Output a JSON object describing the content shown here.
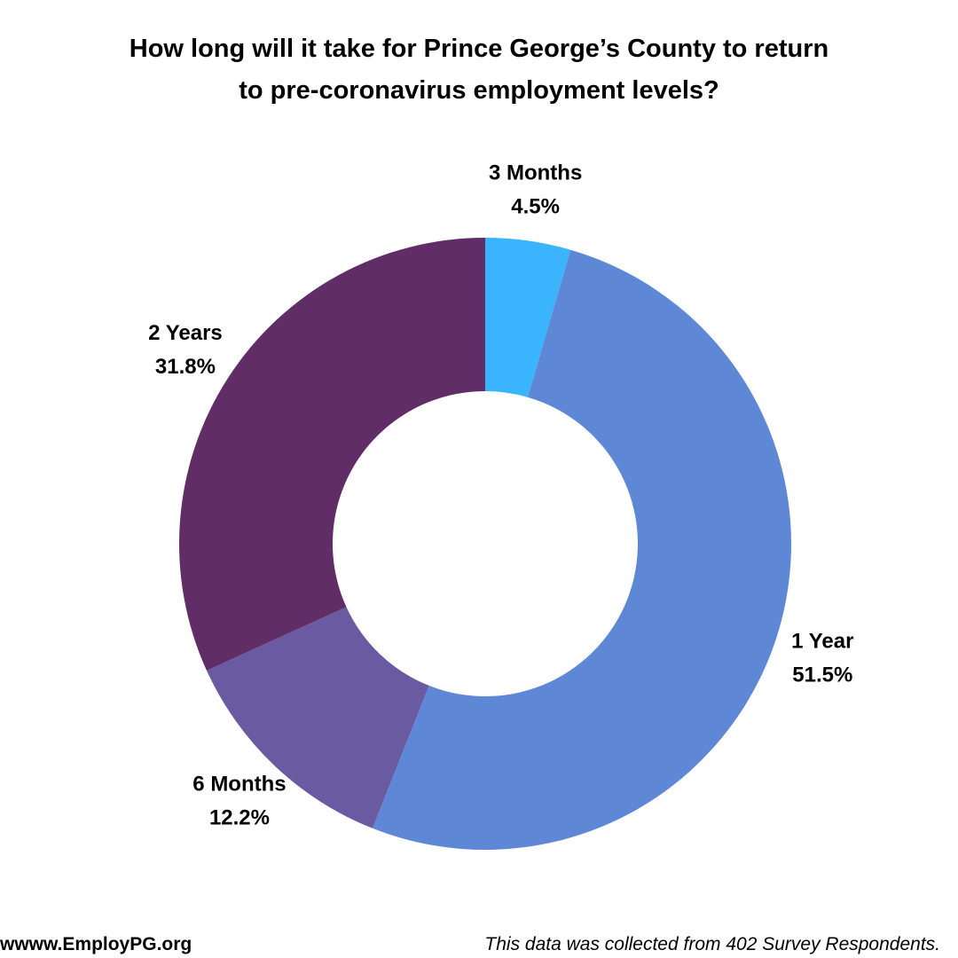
{
  "chart_data": {
    "type": "pie",
    "title": "How long will it take for Prince George’s County to return to pre-coronavirus employment levels?",
    "categories": [
      "3 Months",
      "1 Year",
      "6 Months",
      "2 Years"
    ],
    "values": [
      4.5,
      51.5,
      12.2,
      31.8
    ],
    "value_labels": [
      "4.5%",
      "51.5%",
      "12.2%",
      "31.8%"
    ],
    "colors": [
      "#3ab4fc",
      "#5e88d6",
      "#6a5aa2",
      "#612d66"
    ],
    "source": "wwww.EmployPG.org",
    "note": "This data was collected from 402 Survey Respondents."
  }
}
